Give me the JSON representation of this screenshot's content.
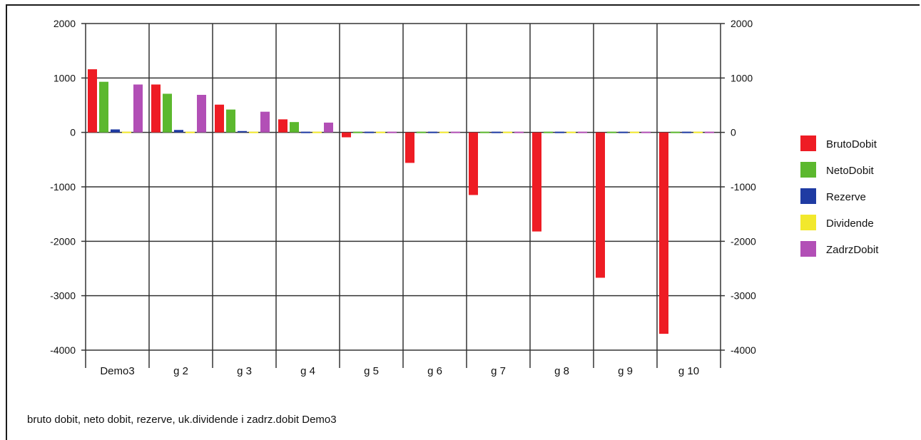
{
  "chart_data": {
    "type": "bar",
    "caption": "bruto dobit, neto dobit, rezerve, uk.dividende i zadrz.dobit Demo3",
    "categories": [
      "Demo3",
      "g 2",
      "g 3",
      "g 4",
      "g 5",
      "g 6",
      "g 7",
      "g 8",
      "g 9",
      "g 10"
    ],
    "ylim": [
      -4000,
      2000
    ],
    "yticks": [
      "2000",
      "1000",
      "0",
      "-1000",
      "-2000",
      "-3000",
      "-4000"
    ],
    "grid": true,
    "legend_position": "right",
    "series": [
      {
        "name": "BrutoDobit",
        "color": "#ee1c24",
        "values": [
          1160,
          880,
          510,
          240,
          -90,
          -560,
          -1150,
          -1820,
          -2670,
          -3700
        ]
      },
      {
        "name": "NetoDobit",
        "color": "#5cb82e",
        "values": [
          930,
          710,
          420,
          190,
          0,
          0,
          0,
          0,
          0,
          0
        ]
      },
      {
        "name": "Rezerve",
        "color": "#1f3ba3",
        "values": [
          55,
          45,
          25,
          15,
          0,
          0,
          0,
          0,
          0,
          0
        ]
      },
      {
        "name": "Dividende",
        "color": "#f2e82c",
        "values": [
          0,
          0,
          0,
          0,
          0,
          0,
          0,
          0,
          0,
          0
        ]
      },
      {
        "name": "ZadrzDobit",
        "color": "#b24fb6",
        "values": [
          880,
          690,
          380,
          180,
          0,
          0,
          0,
          0,
          0,
          0
        ]
      }
    ]
  }
}
